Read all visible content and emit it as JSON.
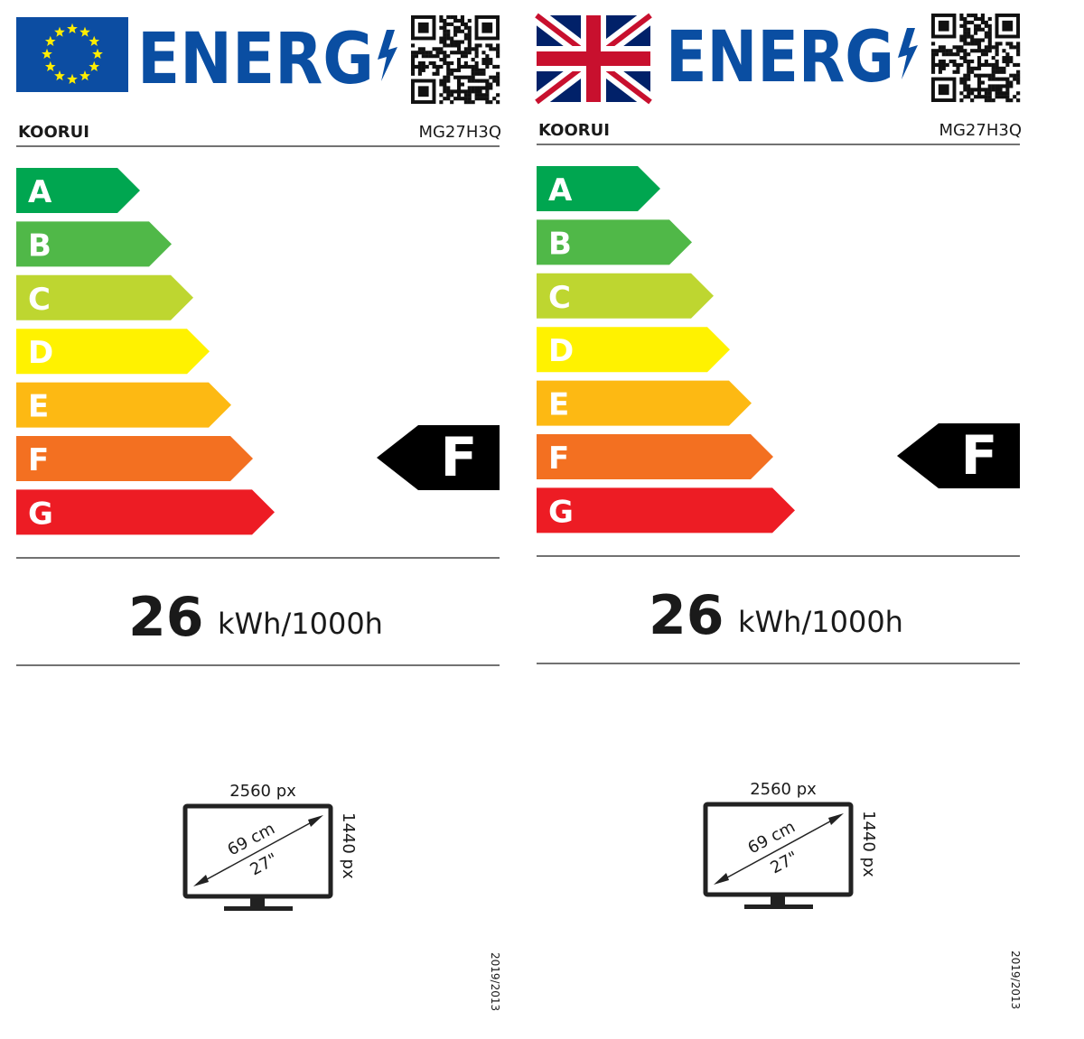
{
  "labels": [
    {
      "flag": "eu-flag",
      "logo_text": "ENERG",
      "supplier": "KOORUI",
      "model": "MG27H3Q",
      "classes": [
        "A",
        "B",
        "C",
        "D",
        "E",
        "F",
        "G"
      ],
      "rating": "F",
      "energy_value": "26",
      "energy_unit": "kWh/1000h",
      "resolution_width": "2560 px",
      "resolution_height": "1440 px",
      "diagonal_cm": "69 cm",
      "diagonal_in": "27\"",
      "regulation": "2019/2013"
    },
    {
      "flag": "uk-flag",
      "logo_text": "ENERG",
      "supplier": "KOORUI",
      "model": "MG27H3Q",
      "classes": [
        "A",
        "B",
        "C",
        "D",
        "E",
        "F",
        "G"
      ],
      "rating": "F",
      "energy_value": "26",
      "energy_unit": "kWh/1000h",
      "resolution_width": "2560 px",
      "resolution_height": "1440 px",
      "diagonal_cm": "69 cm",
      "diagonal_in": "27\"",
      "regulation": "2019/2013"
    }
  ],
  "colors": {
    "logo_blue": "#0a4ea2",
    "eu_blue": "#0c4da2",
    "eu_star": "#ffed00",
    "class_colors": [
      "#00a650",
      "#50b848",
      "#bed630",
      "#fff200",
      "#fdb913",
      "#f37021",
      "#ed1c24"
    ]
  }
}
